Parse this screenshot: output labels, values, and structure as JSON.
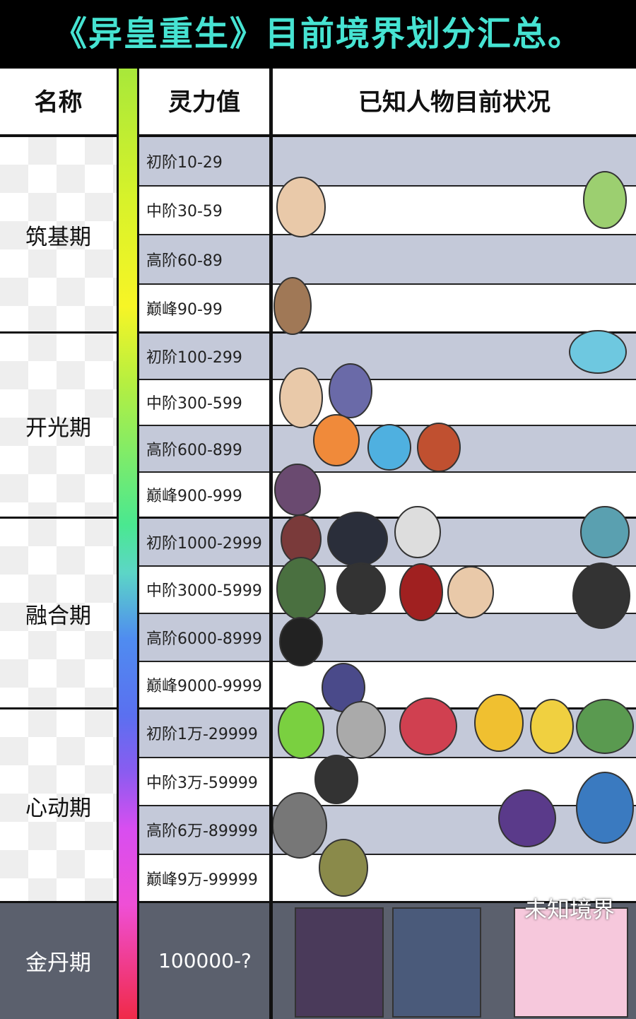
{
  "title": "《异皇重生》目前境界划分汇总。",
  "header": {
    "name": "名称",
    "value": "灵力值",
    "status": "已知人物目前状况"
  },
  "realms": [
    {
      "name": "筑基期",
      "levels": [
        "初阶10-29",
        "中阶30-59",
        "高阶60-89",
        "巅峰90-99"
      ]
    },
    {
      "name": "开光期",
      "levels": [
        "初阶100-299",
        "中阶300-599",
        "高阶600-899",
        "巅峰900-999"
      ]
    },
    {
      "name": "融合期",
      "levels": [
        "初阶1000-2999",
        "中阶3000-5999",
        "高阶6000-8999",
        "巅峰9000-9999"
      ]
    },
    {
      "name": "心动期",
      "levels": [
        "初阶1万-29999",
        "中阶3万-59999",
        "高阶6万-89999",
        "巅峰9万-99999"
      ]
    },
    {
      "name": "金丹期",
      "levels": [
        "100000-?"
      ]
    }
  ],
  "unknown_label": "未知境界"
}
